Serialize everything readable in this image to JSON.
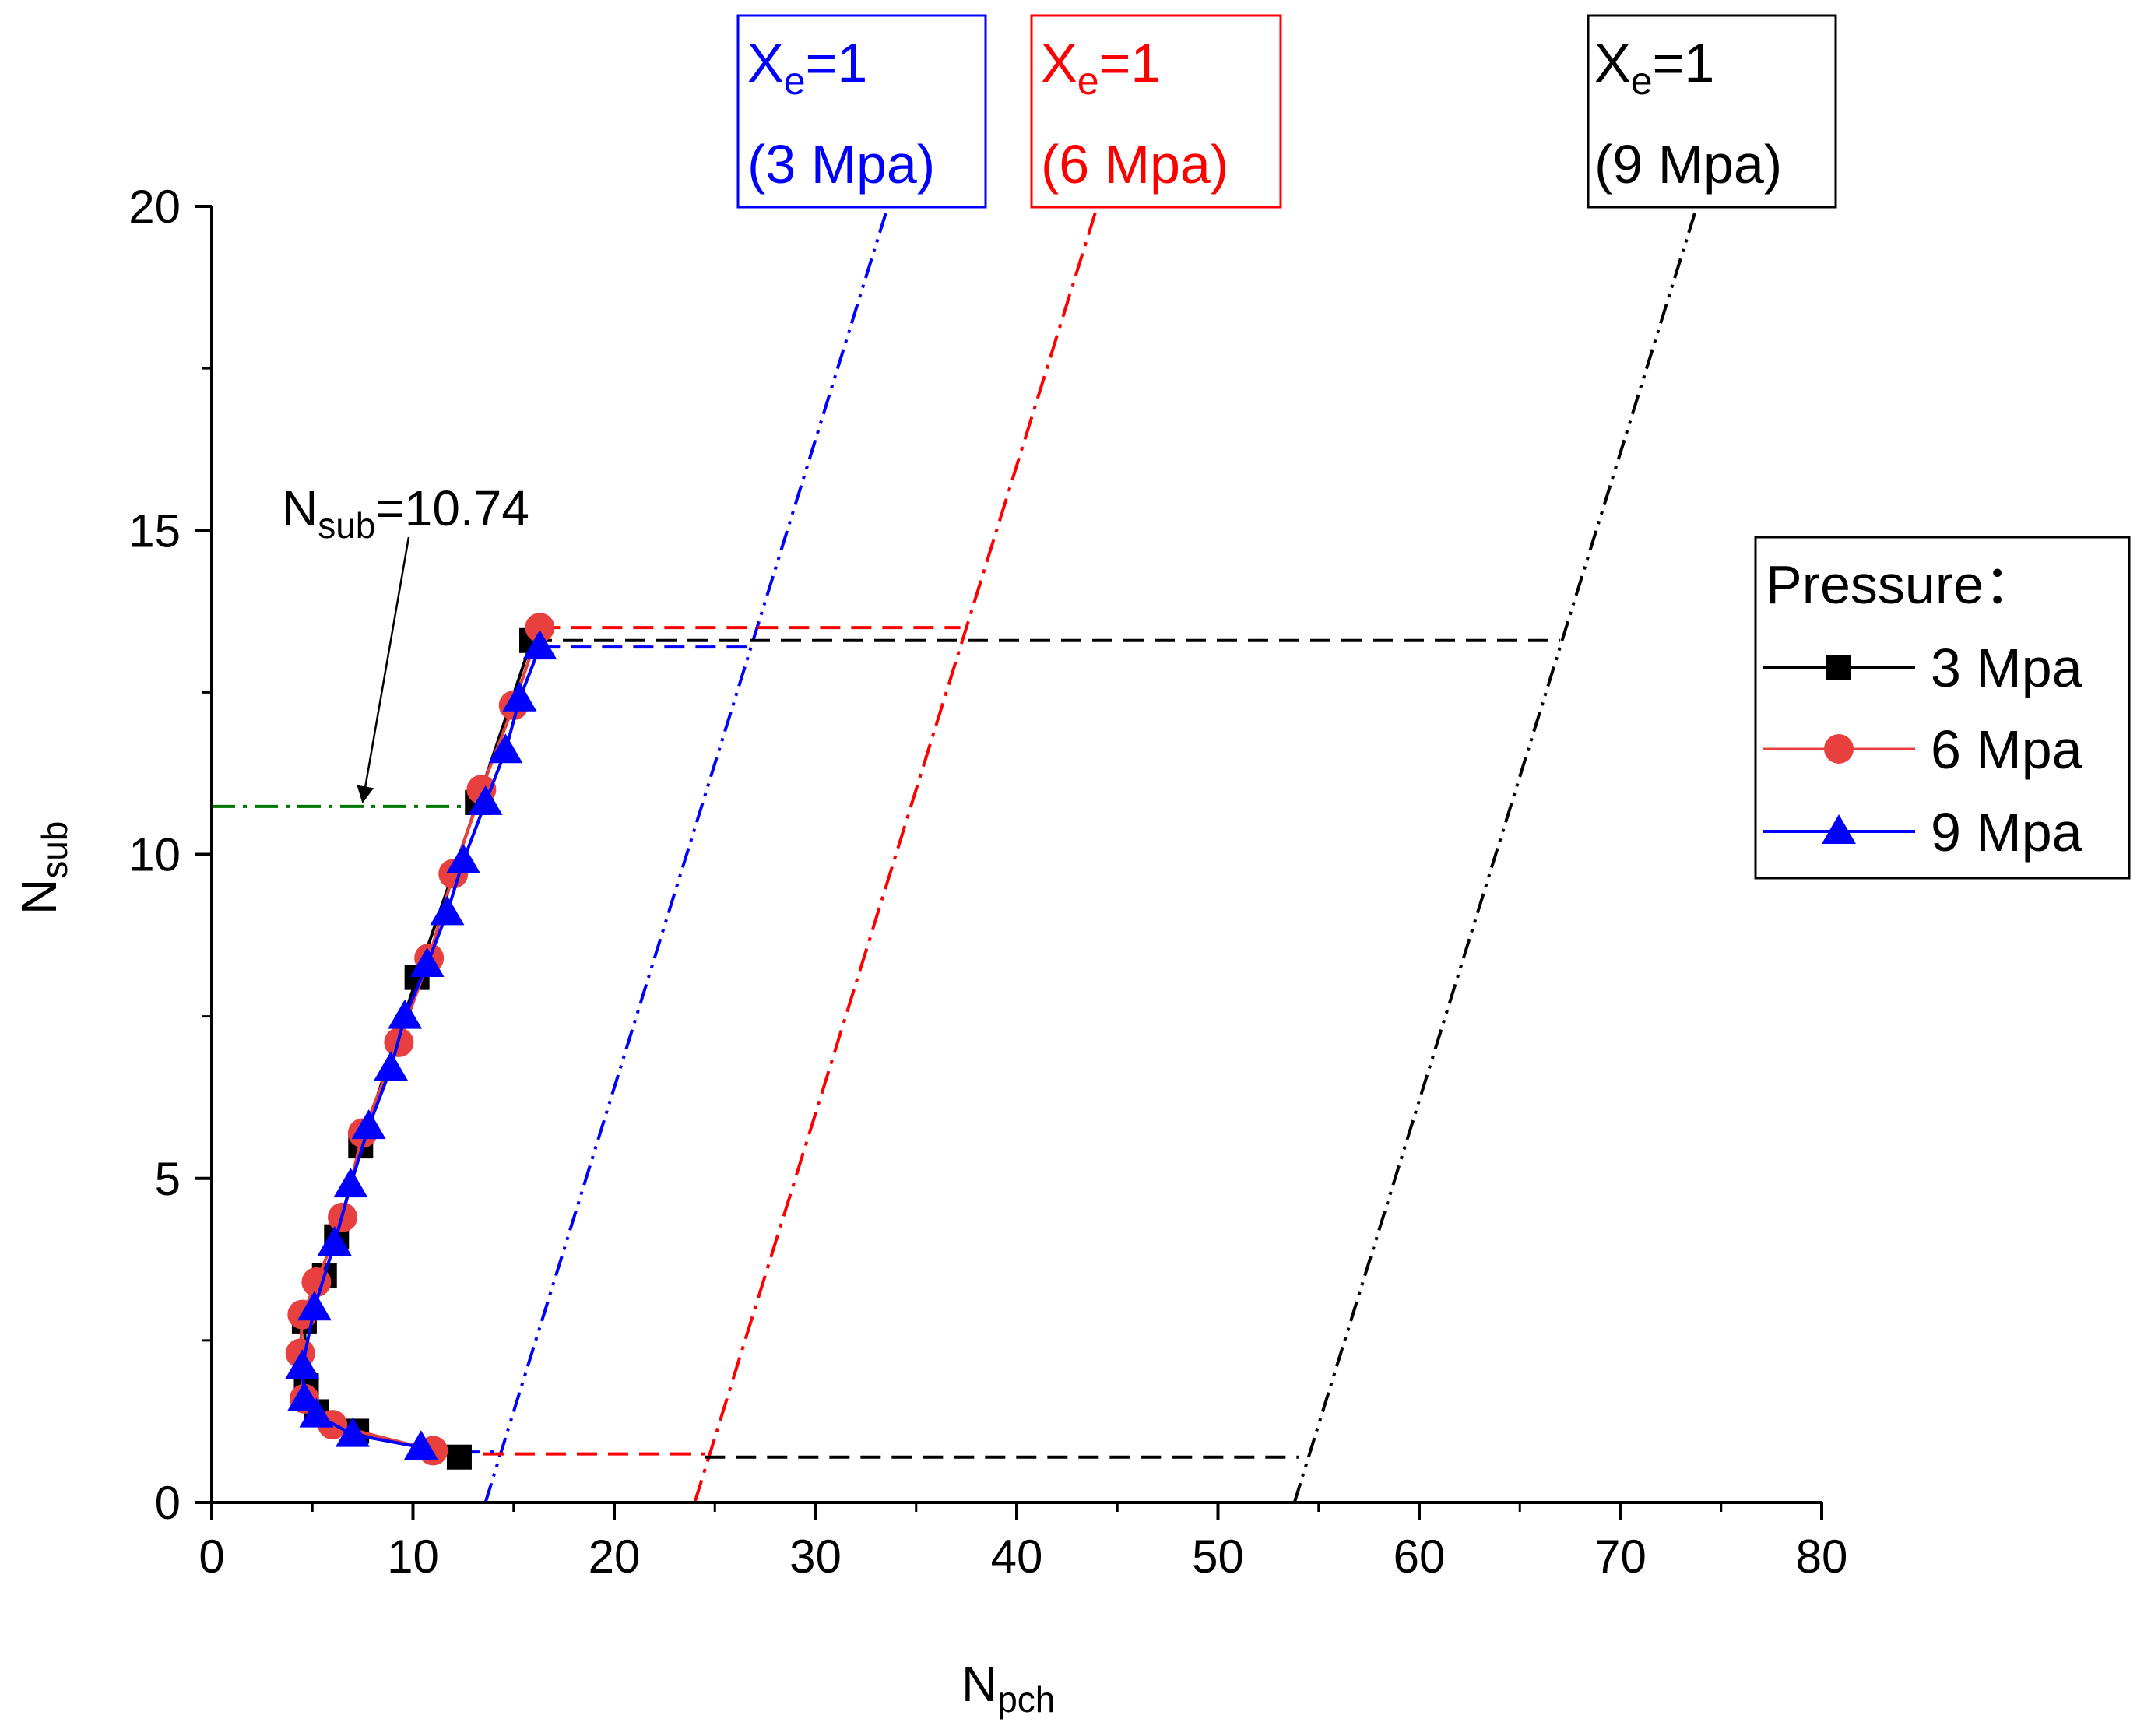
{
  "chart_data": {
    "type": "line",
    "xlabel": {
      "main": "N",
      "sub": "pch"
    },
    "ylabel": {
      "main": "N",
      "sub": "sub"
    },
    "xlim": [
      0,
      80
    ],
    "ylim": [
      0,
      20
    ],
    "x_ticks": [
      0,
      10,
      20,
      30,
      40,
      50,
      60,
      70,
      80
    ],
    "y_ticks": [
      0,
      5,
      10,
      15,
      20
    ],
    "x_tick_labels": [
      "0",
      "10",
      "20",
      "30",
      "40",
      "50",
      "60",
      "70",
      "80"
    ],
    "y_tick_labels": [
      "0",
      "5",
      "10",
      "15",
      "20"
    ],
    "grid": false,
    "legend": {
      "title": "Pressure：",
      "placement": "right",
      "entries": [
        "3 Mpa",
        "6 Mpa",
        "9 Mpa"
      ]
    },
    "series": [
      {
        "name": "3 Mpa",
        "color": "#000000",
        "marker": "square",
        "x": [
          12.3,
          7.2,
          5.2,
          4.7,
          4.6,
          5.6,
          6.2,
          7.4,
          10.2,
          13.2,
          15.9
        ],
        "y": [
          0.7,
          1.1,
          1.4,
          1.8,
          2.8,
          3.5,
          4.1,
          5.5,
          8.1,
          10.8,
          13.3
        ]
      },
      {
        "name": "6 Mpa",
        "color": "#e8403f",
        "marker": "circle",
        "x": [
          11.0,
          6.0,
          4.6,
          4.4,
          4.5,
          5.2,
          6.5,
          7.5,
          9.3,
          10.8,
          12.0,
          13.4,
          15.0,
          16.3
        ],
        "y": [
          0.8,
          1.2,
          1.6,
          2.3,
          2.9,
          3.4,
          4.4,
          5.7,
          7.1,
          8.4,
          9.7,
          11.0,
          12.3,
          13.5
        ]
      },
      {
        "name": "9 Mpa",
        "color": "#0000ff",
        "marker": "triangle",
        "x": [
          10.4,
          7.0,
          5.2,
          4.6,
          4.5,
          5.1,
          6.1,
          6.9,
          7.8,
          8.9,
          9.6,
          10.7,
          11.7,
          12.5,
          13.6,
          14.6,
          15.3,
          16.3
        ],
        "y": [
          0.85,
          1.05,
          1.35,
          1.6,
          2.1,
          3.0,
          4.0,
          4.9,
          5.8,
          6.7,
          7.5,
          8.3,
          9.1,
          9.9,
          10.8,
          11.6,
          12.4,
          13.2
        ]
      }
    ],
    "ref_lines": [
      {
        "name": "xe1-3mpa",
        "color": "#0000ff",
        "style": "dashdotdot",
        "x": [
          13.6,
          33.6
        ],
        "y": [
          0,
          20
        ]
      },
      {
        "name": "xe1-6mpa",
        "color": "#ff0000",
        "style": "dashdot",
        "x": [
          24.0,
          44.0
        ],
        "y": [
          0,
          20
        ]
      },
      {
        "name": "xe1-9mpa",
        "color": "#000000",
        "style": "dashdotdot",
        "x": [
          53.8,
          73.8
        ],
        "y": [
          0,
          20
        ]
      },
      {
        "name": "top-h-9mpa",
        "color": "#0000ff",
        "style": "dashed",
        "x": [
          16.3,
          26.8
        ],
        "y": [
          13.2,
          13.2
        ]
      },
      {
        "name": "top-h-6mpa",
        "color": "#ff0000",
        "style": "dashed",
        "x": [
          16.3,
          37.2
        ],
        "y": [
          13.5,
          13.5
        ]
      },
      {
        "name": "top-h-3mpa",
        "color": "#000000",
        "style": "dashed",
        "x": [
          15.9,
          67.0
        ],
        "y": [
          13.3,
          13.3
        ]
      },
      {
        "name": "bottom-h-6mpa",
        "color": "#ff0000",
        "style": "dashed",
        "x": [
          13.5,
          24.5
        ],
        "y": [
          0.75,
          0.75
        ]
      },
      {
        "name": "bottom-h-3mpa",
        "color": "#000000",
        "style": "dashed",
        "x": [
          24.5,
          54.0
        ],
        "y": [
          0.7,
          0.7
        ]
      },
      {
        "name": "bottom-h-9mpa",
        "color": "#0000ff",
        "style": "dashed",
        "x": [
          12.3,
          14.0
        ],
        "y": [
          0.78,
          0.78
        ]
      },
      {
        "name": "nsub-marker-line",
        "color": "#007700",
        "style": "dashdot",
        "x": [
          0,
          13.3
        ],
        "y": [
          10.74,
          10.74
        ]
      }
    ],
    "annotations": {
      "nsub": {
        "main": "N",
        "sub": "sub",
        "value": "=10.74",
        "target": [
          7.5,
          10.74
        ]
      },
      "boxes": [
        {
          "name": "xe-box-3mpa",
          "color": "#0000ff",
          "line1_main": "X",
          "line1_sub": "e",
          "line1_rest": "=1",
          "line2": "(3 Mpa)"
        },
        {
          "name": "xe-box-6mpa",
          "color": "#ff0000",
          "line1_main": "X",
          "line1_sub": "e",
          "line1_rest": "=1",
          "line2": "(6 Mpa)"
        },
        {
          "name": "xe-box-9mpa",
          "color": "#000000",
          "line1_main": "X",
          "line1_sub": "e",
          "line1_rest": "=1",
          "line2": "(9 Mpa)"
        }
      ]
    }
  }
}
